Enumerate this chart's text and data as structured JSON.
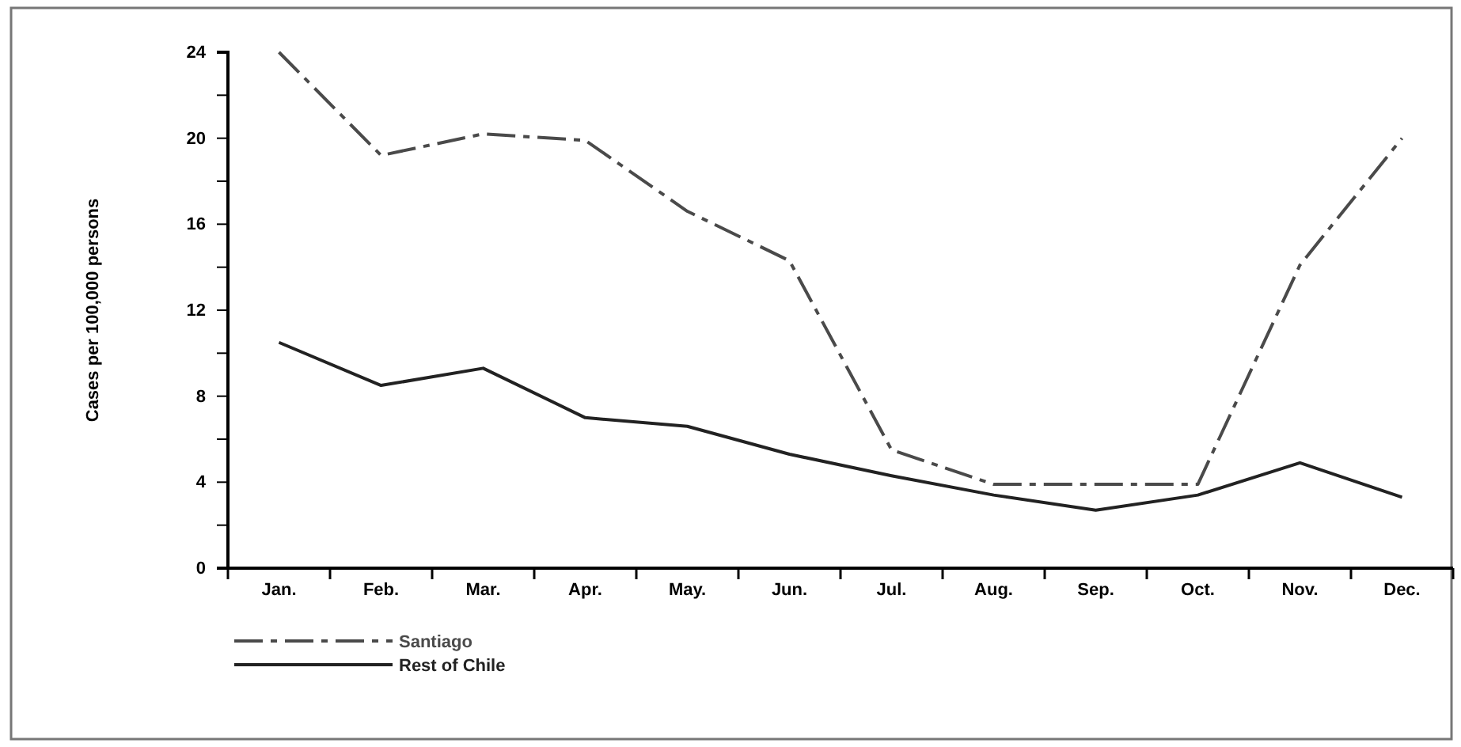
{
  "chart_data": {
    "type": "line",
    "ylabel": "Cases per 100,000 persons",
    "categories": [
      "Jan.",
      "Feb.",
      "Mar.",
      "Apr.",
      "May.",
      "Jun.",
      "Jul.",
      "Aug.",
      "Sep.",
      "Oct.",
      "Nov.",
      "Dec."
    ],
    "series": [
      {
        "name": "Santiago",
        "color": "#4a4a4a",
        "line_style": "dashed",
        "values": [
          24,
          19.2,
          20.2,
          19.9,
          16.6,
          14.3,
          5.5,
          3.9,
          3.9,
          3.9,
          14.1,
          20
        ]
      },
      {
        "name": "Rest of Chile",
        "color": "#222222",
        "line_style": "solid",
        "values": [
          10.5,
          8.5,
          9.3,
          7,
          6.6,
          5.3,
          4.3,
          3.4,
          2.7,
          3.4,
          4.9,
          3.3
        ]
      }
    ],
    "ylim": [
      0,
      24
    ],
    "yticks": [
      0,
      {
        "value": 2,
        "label": null
      },
      4,
      {
        "value": 6,
        "label": null
      },
      8,
      {
        "value": 10,
        "label": null
      },
      12,
      {
        "value": 14,
        "label": null
      },
      16,
      {
        "value": 18,
        "label": null
      },
      20,
      {
        "value": 22,
        "label": null
      },
      24
    ],
    "grid": false,
    "legend": "bottom left",
    "marker": "none"
  }
}
